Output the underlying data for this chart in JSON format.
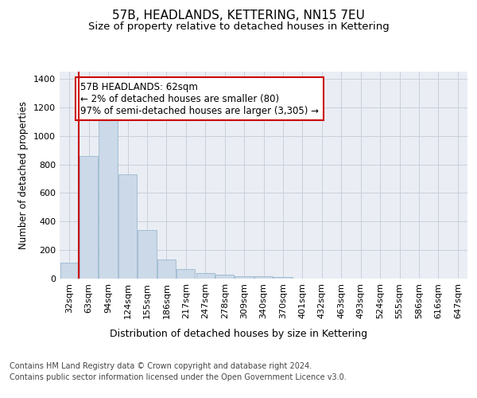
{
  "title": "57B, HEADLANDS, KETTERING, NN15 7EU",
  "subtitle": "Size of property relative to detached houses in Kettering",
  "xlabel": "Distribution of detached houses by size in Kettering",
  "ylabel": "Number of detached properties",
  "categories": [
    "32sqm",
    "63sqm",
    "94sqm",
    "124sqm",
    "155sqm",
    "186sqm",
    "217sqm",
    "247sqm",
    "278sqm",
    "309sqm",
    "340sqm",
    "370sqm",
    "401sqm",
    "432sqm",
    "463sqm",
    "493sqm",
    "524sqm",
    "555sqm",
    "586sqm",
    "616sqm",
    "647sqm"
  ],
  "values": [
    110,
    860,
    1130,
    730,
    340,
    135,
    65,
    38,
    28,
    18,
    15,
    10,
    0,
    0,
    0,
    0,
    0,
    0,
    0,
    0,
    0
  ],
  "bar_color": "#ccd9e8",
  "bar_edge_color": "#9ab8d0",
  "annotation_text": "57B HEADLANDS: 62sqm\n← 2% of detached houses are smaller (80)\n97% of semi-detached houses are larger (3,305) →",
  "annotation_box_color": "#ffffff",
  "annotation_box_edge_color": "#cc0000",
  "vline_color": "#cc0000",
  "ylim": [
    0,
    1450
  ],
  "grid_color": "#c8d0dc",
  "bg_color": "#eaeef4",
  "footer_line1": "Contains HM Land Registry data © Crown copyright and database right 2024.",
  "footer_line2": "Contains public sector information licensed under the Open Government Licence v3.0.",
  "title_fontsize": 11,
  "subtitle_fontsize": 9.5,
  "ylabel_fontsize": 8.5,
  "xlabel_fontsize": 9,
  "tick_fontsize": 8,
  "annotation_fontsize": 8.5,
  "footer_fontsize": 7
}
